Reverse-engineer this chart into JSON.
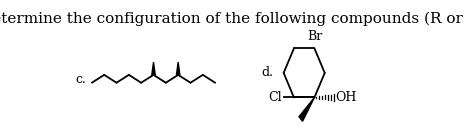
{
  "title": "Determine the configuration of the following compounds (R or S)",
  "title_fontsize": 11,
  "background_color": "#ffffff",
  "label_c": "c.",
  "label_d": "d.",
  "label_Br": "Br",
  "label_Cl": "Cl",
  "label_OH": "OH",
  "figsize": [
    4.65,
    1.38
  ],
  "dpi": 100
}
